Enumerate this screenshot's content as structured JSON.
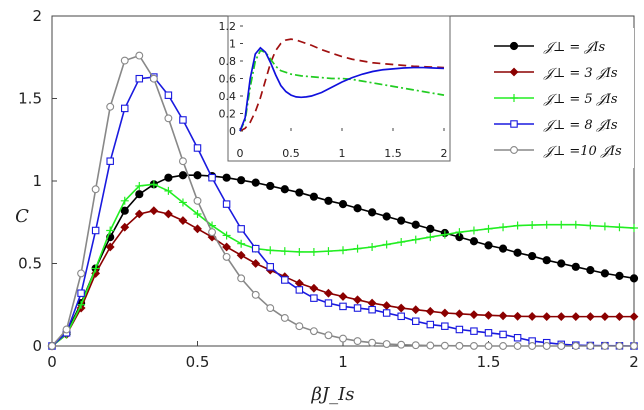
{
  "chart_data": {
    "type": "line",
    "xlabel": "βJ_Is",
    "ylabel": "C",
    "xlim": [
      0,
      2
    ],
    "ylim": [
      0,
      2
    ],
    "xticks": [
      "0",
      "0.5",
      "1",
      "1.5",
      "2"
    ],
    "yticks": [
      "0",
      "0.5",
      "1",
      "1.5",
      "2"
    ],
    "legend_position": "top-right",
    "series": [
      {
        "name": "J⊥ = J_Is",
        "legend_label": "𝒥⊥ = 𝒥Is",
        "color": "#000000",
        "marker": "filled-circle",
        "x": [
          0,
          0.05,
          0.1,
          0.15,
          0.2,
          0.25,
          0.3,
          0.35,
          0.4,
          0.45,
          0.5,
          0.55,
          0.6,
          0.65,
          0.7,
          0.75,
          0.8,
          0.85,
          0.9,
          0.95,
          1.0,
          1.05,
          1.1,
          1.15,
          1.2,
          1.25,
          1.3,
          1.35,
          1.4,
          1.45,
          1.5,
          1.55,
          1.6,
          1.65,
          1.7,
          1.75,
          1.8,
          1.85,
          1.9,
          1.95,
          2.0
        ],
        "y": [
          0,
          0.08,
          0.26,
          0.47,
          0.66,
          0.82,
          0.92,
          0.98,
          1.02,
          1.035,
          1.035,
          1.03,
          1.02,
          1.005,
          0.99,
          0.97,
          0.95,
          0.93,
          0.905,
          0.88,
          0.86,
          0.835,
          0.81,
          0.785,
          0.76,
          0.735,
          0.71,
          0.685,
          0.66,
          0.635,
          0.61,
          0.59,
          0.565,
          0.545,
          0.52,
          0.5,
          0.48,
          0.46,
          0.44,
          0.425,
          0.41
        ]
      },
      {
        "name": "J⊥ = 3 J_Is",
        "legend_label": "𝒥⊥ = 3 𝒥Is",
        "color": "#8b0000",
        "marker": "filled-diamond",
        "x": [
          0,
          0.05,
          0.1,
          0.15,
          0.2,
          0.25,
          0.3,
          0.35,
          0.4,
          0.45,
          0.5,
          0.55,
          0.6,
          0.65,
          0.7,
          0.75,
          0.8,
          0.85,
          0.9,
          0.95,
          1.0,
          1.05,
          1.1,
          1.15,
          1.2,
          1.25,
          1.3,
          1.35,
          1.4,
          1.45,
          1.5,
          1.55,
          1.6,
          1.65,
          1.7,
          1.75,
          1.8,
          1.85,
          1.9,
          1.95,
          2.0
        ],
        "y": [
          0,
          0.07,
          0.23,
          0.44,
          0.6,
          0.72,
          0.8,
          0.82,
          0.8,
          0.76,
          0.71,
          0.66,
          0.6,
          0.55,
          0.5,
          0.46,
          0.42,
          0.38,
          0.35,
          0.32,
          0.3,
          0.28,
          0.26,
          0.245,
          0.23,
          0.22,
          0.21,
          0.2,
          0.195,
          0.19,
          0.186,
          0.183,
          0.18,
          0.179,
          0.178,
          0.178,
          0.178,
          0.178,
          0.178,
          0.178,
          0.178
        ]
      },
      {
        "name": "J⊥ = 5 J_Is",
        "legend_label": "𝒥⊥ = 5 𝒥Is",
        "color": "#22ee22",
        "marker": "plus",
        "x": [
          0,
          0.05,
          0.1,
          0.15,
          0.2,
          0.25,
          0.3,
          0.35,
          0.4,
          0.45,
          0.5,
          0.55,
          0.6,
          0.65,
          0.7,
          0.75,
          0.8,
          0.85,
          0.9,
          0.95,
          1.0,
          1.05,
          1.1,
          1.15,
          1.2,
          1.25,
          1.3,
          1.35,
          1.4,
          1.45,
          1.5,
          1.55,
          1.6,
          1.65,
          1.7,
          1.75,
          1.8,
          1.85,
          1.9,
          1.95,
          2.0
        ],
        "y": [
          0,
          0.07,
          0.25,
          0.47,
          0.7,
          0.88,
          0.97,
          0.98,
          0.94,
          0.87,
          0.8,
          0.73,
          0.67,
          0.62,
          0.59,
          0.58,
          0.575,
          0.57,
          0.57,
          0.575,
          0.58,
          0.59,
          0.6,
          0.615,
          0.63,
          0.645,
          0.66,
          0.675,
          0.69,
          0.7,
          0.71,
          0.72,
          0.73,
          0.733,
          0.735,
          0.735,
          0.735,
          0.73,
          0.725,
          0.72,
          0.715
        ]
      },
      {
        "name": "J⊥ = 8 J_Is",
        "legend_label": "𝒥⊥ = 8 𝒥Is",
        "color": "#1a1adf",
        "marker": "open-square",
        "x": [
          0,
          0.05,
          0.1,
          0.15,
          0.2,
          0.25,
          0.3,
          0.35,
          0.4,
          0.45,
          0.5,
          0.55,
          0.6,
          0.65,
          0.7,
          0.75,
          0.8,
          0.85,
          0.9,
          0.95,
          1.0,
          1.05,
          1.1,
          1.15,
          1.2,
          1.25,
          1.3,
          1.35,
          1.4,
          1.45,
          1.5,
          1.55,
          1.6,
          1.65,
          1.7,
          1.75,
          1.8,
          1.85,
          1.9,
          1.95,
          2.0
        ],
        "y": [
          0,
          0.08,
          0.32,
          0.7,
          1.12,
          1.44,
          1.62,
          1.63,
          1.52,
          1.37,
          1.2,
          1.02,
          0.86,
          0.71,
          0.59,
          0.48,
          0.4,
          0.34,
          0.29,
          0.26,
          0.24,
          0.23,
          0.22,
          0.2,
          0.18,
          0.15,
          0.13,
          0.12,
          0.1,
          0.09,
          0.08,
          0.07,
          0.05,
          0.03,
          0.02,
          0.01,
          0.005,
          0.003,
          0.002,
          0.001,
          0
        ]
      },
      {
        "name": "J⊥ = 10 J_Is",
        "legend_label": "𝒥⊥ =10 𝒥Is",
        "color": "#888888",
        "marker": "open-circle",
        "x": [
          0,
          0.05,
          0.1,
          0.15,
          0.2,
          0.25,
          0.3,
          0.35,
          0.4,
          0.45,
          0.5,
          0.55,
          0.6,
          0.65,
          0.7,
          0.75,
          0.8,
          0.85,
          0.9,
          0.95,
          1.0,
          1.05,
          1.1,
          1.15,
          1.2,
          1.25,
          1.3,
          1.35,
          1.4,
          1.45,
          1.5,
          1.55,
          1.6,
          1.65,
          1.7,
          1.75,
          1.8,
          1.85,
          1.9,
          1.95,
          2.0
        ],
        "y": [
          0,
          0.1,
          0.44,
          0.95,
          1.45,
          1.73,
          1.76,
          1.62,
          1.38,
          1.12,
          0.88,
          0.69,
          0.54,
          0.41,
          0.31,
          0.23,
          0.17,
          0.12,
          0.09,
          0.065,
          0.045,
          0.03,
          0.02,
          0.012,
          0.008,
          0.005,
          0.003,
          0.002,
          0.001,
          0.0005,
          0,
          0,
          0,
          0,
          0,
          0,
          0,
          0,
          0,
          0,
          0
        ]
      }
    ],
    "inset": {
      "type": "line",
      "xlim": [
        0,
        2
      ],
      "ylim": [
        0,
        1.2
      ],
      "xticks": [
        "0",
        "0.5",
        "1",
        "1.5",
        "2"
      ],
      "yticks": [
        "0",
        "0.2",
        "0.4",
        "0.6",
        "0.8",
        "1",
        "1.2"
      ],
      "series": [
        {
          "name": "dashed-darkred",
          "color": "#a01010",
          "style": "dashed",
          "x": [
            0,
            0.05,
            0.1,
            0.15,
            0.2,
            0.25,
            0.3,
            0.35,
            0.4,
            0.45,
            0.5,
            0.55,
            0.6,
            0.7,
            0.8,
            0.9,
            1.0,
            1.1,
            1.2,
            1.3,
            1.4,
            1.5,
            1.6,
            1.7,
            1.8,
            1.9,
            2.0
          ],
          "y": [
            0,
            0.03,
            0.1,
            0.22,
            0.38,
            0.58,
            0.78,
            0.92,
            1.0,
            1.04,
            1.05,
            1.04,
            1.02,
            0.98,
            0.93,
            0.89,
            0.85,
            0.82,
            0.8,
            0.78,
            0.77,
            0.76,
            0.75,
            0.74,
            0.735,
            0.73,
            0.725
          ]
        },
        {
          "name": "dashdot-green",
          "color": "#22cc22",
          "style": "dashdot",
          "x": [
            0,
            0.05,
            0.1,
            0.15,
            0.2,
            0.25,
            0.3,
            0.35,
            0.4,
            0.5,
            0.6,
            0.7,
            0.8,
            0.9,
            1.0,
            1.1,
            1.2,
            1.3,
            1.4,
            1.5,
            1.6,
            1.7,
            1.8,
            1.9,
            2.0
          ],
          "y": [
            0,
            0.12,
            0.5,
            0.8,
            0.92,
            0.9,
            0.82,
            0.74,
            0.69,
            0.65,
            0.63,
            0.62,
            0.61,
            0.6,
            0.6,
            0.59,
            0.57,
            0.55,
            0.53,
            0.51,
            0.49,
            0.47,
            0.45,
            0.43,
            0.41
          ]
        },
        {
          "name": "solid-blue",
          "color": "#1010dd",
          "style": "solid",
          "x": [
            0,
            0.05,
            0.1,
            0.15,
            0.2,
            0.25,
            0.3,
            0.35,
            0.4,
            0.45,
            0.5,
            0.55,
            0.6,
            0.65,
            0.7,
            0.8,
            0.9,
            1.0,
            1.1,
            1.2,
            1.3,
            1.4,
            1.5,
            1.6,
            1.7,
            1.8,
            1.9,
            2.0
          ],
          "y": [
            0,
            0.15,
            0.6,
            0.88,
            0.95,
            0.9,
            0.78,
            0.64,
            0.52,
            0.45,
            0.41,
            0.39,
            0.385,
            0.39,
            0.4,
            0.44,
            0.5,
            0.56,
            0.61,
            0.65,
            0.68,
            0.7,
            0.71,
            0.72,
            0.725,
            0.725,
            0.72,
            0.715
          ]
        }
      ]
    }
  }
}
